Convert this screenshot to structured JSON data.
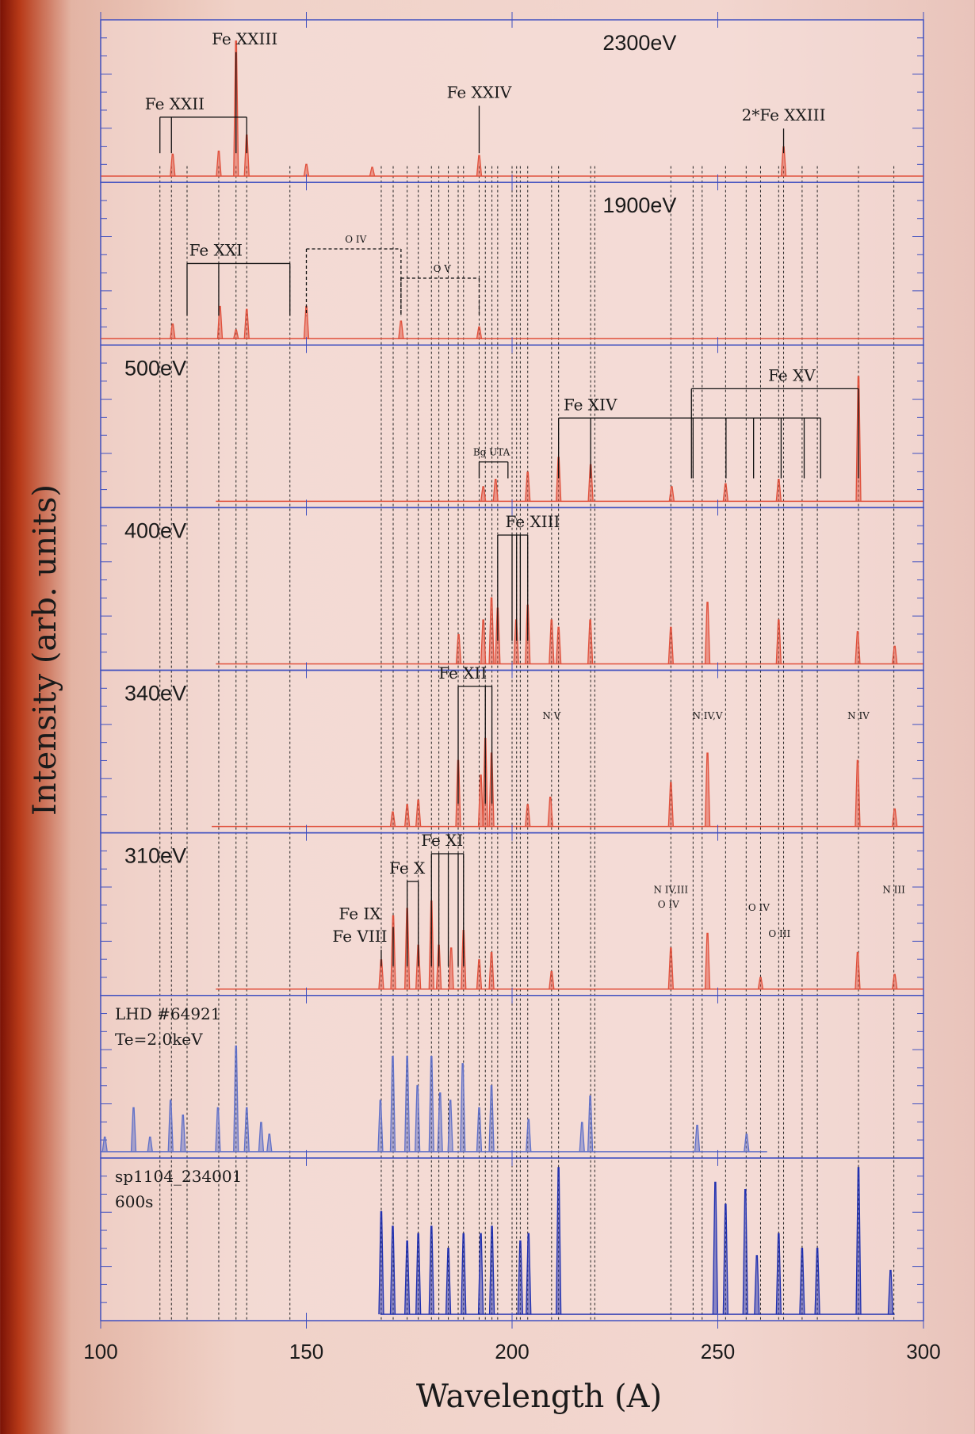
{
  "chart_data": {
    "type": "stacked-spectra",
    "xlabel": "Wavelength (A)",
    "ylabel": "Intensity (arb. units)",
    "xlim": [
      100,
      300
    ],
    "xticks": [
      100,
      150,
      200,
      250,
      300
    ],
    "ylim": [
      0,
      1
    ],
    "reference_lines": [
      114.4,
      117.2,
      121,
      128.7,
      132.9,
      135.5,
      146.0,
      168.2,
      171.1,
      174.5,
      177.2,
      180.4,
      182.2,
      184.5,
      186.9,
      188.2,
      192.0,
      193.5,
      195.1,
      196.5,
      200.0,
      201.1,
      202.0,
      203.8,
      209.6,
      211.3,
      219.1,
      220.1,
      238.6,
      244.0,
      246.2,
      251.9,
      256.9,
      260.4,
      264.8,
      266.0,
      270.5,
      274.2,
      284.2,
      292.8
    ],
    "panels": [
      {
        "label": [
          "2300eV"
        ],
        "color": "#e0503c",
        "range": [
          100,
          300
        ],
        "x": [
          117.5,
          128.7,
          132.9,
          135.5,
          150,
          166,
          192,
          266
        ],
        "values": [
          0.15,
          0.17,
          0.92,
          0.28,
          0.08,
          0.06,
          0.14,
          0.2
        ]
      },
      {
        "label": [
          "1900eV"
        ],
        "color": "#e0503c",
        "range": [
          100,
          300
        ],
        "x": [
          117.5,
          129,
          132.9,
          135.5,
          150,
          173,
          192
        ],
        "values": [
          0.1,
          0.22,
          0.06,
          0.2,
          0.22,
          0.12,
          0.08
        ]
      },
      {
        "label": [
          "500eV"
        ],
        "color": "#e0503c",
        "range": [
          128,
          300
        ],
        "x": [
          193,
          196,
          203.8,
          211.3,
          219.1,
          238.8,
          251.9,
          264.8,
          284.2
        ],
        "values": [
          0.1,
          0.15,
          0.2,
          0.3,
          0.25,
          0.1,
          0.12,
          0.15,
          0.85
        ]
      },
      {
        "label": [
          "400eV"
        ],
        "color": "#e0503c",
        "range": [
          128,
          300
        ],
        "x": [
          187,
          193,
          195,
          196.5,
          201,
          203.8,
          209.6,
          211.3,
          219,
          238.6,
          247.5,
          264.8,
          284,
          293
        ],
        "values": [
          0.2,
          0.3,
          0.45,
          0.38,
          0.3,
          0.4,
          0.3,
          0.25,
          0.3,
          0.25,
          0.42,
          0.3,
          0.22,
          0.12
        ]
      },
      {
        "label": [
          "340eV"
        ],
        "color": "#e0503c",
        "range": [
          127,
          300
        ],
        "x": [
          171,
          174.5,
          177.2,
          186.9,
          192.4,
          193.5,
          195,
          203.8,
          209.3,
          238.6,
          247.5,
          284,
          293
        ],
        "values": [
          0.1,
          0.15,
          0.18,
          0.45,
          0.35,
          0.6,
          0.5,
          0.15,
          0.2,
          0.3,
          0.5,
          0.45,
          0.12
        ]
      },
      {
        "label": [
          "310eV"
        ],
        "color": "#e0503c",
        "range": [
          128,
          300
        ],
        "x": [
          168.2,
          171.1,
          174.5,
          177.2,
          180.4,
          182.2,
          185.2,
          188.2,
          192,
          195,
          209.6,
          238.6,
          247.5,
          260.4,
          284,
          293
        ],
        "values": [
          0.2,
          0.5,
          0.55,
          0.3,
          0.6,
          0.3,
          0.28,
          0.4,
          0.2,
          0.25,
          0.12,
          0.28,
          0.38,
          0.08,
          0.25,
          0.1
        ]
      },
      {
        "label": [
          "LHD #64921",
          "Te=2.0keV"
        ],
        "color": "#6070c8",
        "range": [
          100,
          262
        ],
        "x": [
          101,
          108,
          112,
          117,
          120,
          128.5,
          132.9,
          135.5,
          139,
          141,
          168,
          171,
          174.5,
          177,
          180.4,
          182.5,
          185,
          188,
          192,
          195,
          204,
          217,
          219,
          245,
          257
        ],
        "values": [
          0.1,
          0.3,
          0.1,
          0.35,
          0.25,
          0.3,
          0.72,
          0.3,
          0.2,
          0.12,
          0.35,
          0.65,
          0.65,
          0.45,
          0.65,
          0.4,
          0.35,
          0.6,
          0.3,
          0.45,
          0.22,
          0.2,
          0.38,
          0.18,
          0.12
        ]
      },
      {
        "label": [
          "sp1104_234001",
          "600s"
        ],
        "color": "#2030b0",
        "range": [
          168,
          293
        ],
        "x": [
          168.2,
          171,
          174.5,
          177.2,
          180.4,
          184.5,
          188.2,
          192.4,
          195.1,
          202,
          204,
          211.3,
          249.4,
          251.9,
          256.7,
          259.5,
          264.8,
          270.5,
          274.2,
          284.2,
          292
        ],
        "values": [
          0.7,
          0.6,
          0.5,
          0.55,
          0.6,
          0.45,
          0.55,
          0.55,
          0.6,
          0.5,
          0.55,
          1.0,
          0.9,
          0.75,
          0.85,
          0.4,
          0.55,
          0.45,
          0.45,
          1.0,
          0.3
        ]
      }
    ],
    "annotations": [
      {
        "panel": 0,
        "text": "Fe XXIII",
        "x": 135,
        "lines": [
          132.9
        ]
      },
      {
        "panel": 0,
        "text": "Fe XXII",
        "x": 118,
        "lines": [
          114.4,
          117.2,
          135.5
        ]
      },
      {
        "panel": 0,
        "text": "Fe XXIV",
        "x": 192,
        "lines": [
          192
        ]
      },
      {
        "panel": 0,
        "text": "2*Fe XXIII",
        "x": 266,
        "lines": [
          266
        ]
      },
      {
        "panel": 1,
        "text": "Fe XXI",
        "x": 128,
        "lines": [
          121,
          128.7,
          146
        ]
      },
      {
        "panel": 1,
        "text": "O IV",
        "x": 162,
        "lines": [
          150,
          173
        ]
      },
      {
        "panel": 1,
        "text": "O V",
        "x": 183,
        "lines": [
          173,
          192
        ]
      },
      {
        "panel": 2,
        "text": "Fe XIV",
        "x": 219,
        "lines": [
          211.3,
          219.1,
          244,
          252,
          258.7,
          265.4,
          271,
          275
        ]
      },
      {
        "panel": 2,
        "text": "Fe XV",
        "x": 268,
        "lines": [
          243.6,
          284.2
        ]
      },
      {
        "panel": 2,
        "text": "Bg UTA",
        "x": 195,
        "lines": [
          192,
          199
        ]
      },
      {
        "panel": 3,
        "text": "Fe XIII",
        "x": 205,
        "lines": [
          196.5,
          200,
          201.1,
          202,
          203.8
        ]
      },
      {
        "panel": 4,
        "text": "Fe XII",
        "x": 188,
        "lines": [
          186.9,
          193.5,
          195.1
        ]
      },
      {
        "panel": 4,
        "text": "N V",
        "x": 209.6,
        "lines": []
      },
      {
        "panel": 4,
        "text": "N IV,V",
        "x": 247.5,
        "lines": []
      },
      {
        "panel": 4,
        "text": "N IV",
        "x": 284.2,
        "lines": []
      },
      {
        "panel": 5,
        "text": "Fe XI",
        "x": 183,
        "lines": [
          180.4,
          182.2,
          184.5,
          186.9,
          188.2
        ]
      },
      {
        "panel": 5,
        "text": "Fe X",
        "x": 174.5,
        "lines": [
          174.5,
          177.2
        ]
      },
      {
        "panel": 5,
        "text": "Fe IX",
        "x": 163,
        "lines": [
          171.1
        ]
      },
      {
        "panel": 5,
        "text": "Fe VIII",
        "x": 163,
        "lines": [
          168.2
        ]
      },
      {
        "panel": 5,
        "text": "N IV,III",
        "x": 238.6,
        "lines": []
      },
      {
        "panel": 5,
        "text": "O IV",
        "x": 238,
        "lines": []
      },
      {
        "panel": 5,
        "text": "O IV",
        "x": 260,
        "lines": []
      },
      {
        "panel": 5,
        "text": "O III",
        "x": 265,
        "lines": []
      },
      {
        "panel": 5,
        "text": "N III",
        "x": 292.8,
        "lines": []
      }
    ]
  }
}
